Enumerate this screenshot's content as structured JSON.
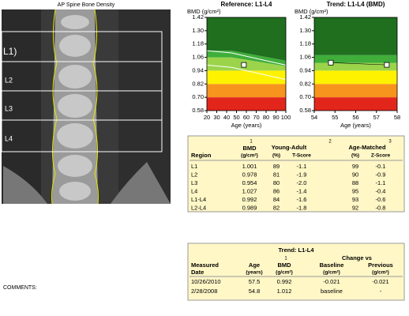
{
  "image": {
    "title": "AP Spine Bone Density",
    "labels": [
      "L1)",
      "L2",
      "L3",
      "L4"
    ]
  },
  "chart_data": [
    {
      "type": "scatter",
      "title": "Reference: L1-L4",
      "y_label": "BMD (g/cm²)",
      "x_label": "Age (years)",
      "xlim": [
        20,
        100
      ],
      "xticks": [
        20,
        30,
        40,
        50,
        60,
        70,
        80,
        90,
        100
      ],
      "ylim": [
        0.58,
        1.42
      ],
      "yticks": [
        0.58,
        {
          "value": 0.7,
          "label": "0.70"
        },
        0.82,
        0.94,
        1.06,
        1.18,
        {
          "value": 1.3,
          "label": "1.30"
        },
        1.42
      ],
      "band_x": [
        20,
        45,
        100
      ],
      "bands": [
        {
          "color": "#e3261c",
          "lower": [
            0.58,
            0.58,
            0.58
          ],
          "upper": [
            0.7,
            0.7,
            0.7
          ]
        },
        {
          "color": "#f7941d",
          "lower": [
            0.7,
            0.7,
            0.7
          ],
          "upper": [
            0.82,
            0.82,
            0.82
          ]
        },
        {
          "color": "#fff200",
          "lower": [
            0.82,
            0.82,
            0.82
          ],
          "upper": [
            0.94,
            0.94,
            0.94
          ]
        },
        {
          "color": "#9bd44a",
          "lower": [
            0.94,
            0.94,
            0.94
          ],
          "upper": [
            1.06,
            1.06,
            0.98
          ]
        },
        {
          "color": "#3fae3a",
          "lower": [
            1.06,
            1.06,
            0.98
          ],
          "upper": [
            1.12,
            1.12,
            1.03
          ]
        },
        {
          "color": "#1f6f1f",
          "lower": [
            1.12,
            1.12,
            1.03
          ],
          "upper": [
            1.42,
            1.42,
            1.42
          ]
        }
      ],
      "curves": [
        {
          "x": [
            20,
            45,
            100
          ],
          "y": [
            1.12,
            1.1,
            0.99
          ]
        },
        {
          "x": [
            20,
            45,
            100
          ],
          "y": [
            0.99,
            0.97,
            0.86
          ]
        }
      ],
      "series": [
        {
          "color": "#ffffff",
          "x": [
            57.5
          ],
          "values": [
            0.992
          ]
        }
      ]
    },
    {
      "type": "line",
      "title": "Trend: L1-L4 (BMD)",
      "y_label": "BMD (g/cm²)",
      "x_label": "Age (years)",
      "xlim": [
        54,
        58
      ],
      "xticks": [
        54,
        55,
        56,
        57,
        58
      ],
      "ylim": [
        0.58,
        1.42
      ],
      "yticks": [
        0.58,
        {
          "value": 0.7,
          "label": "0.70"
        },
        0.82,
        0.94,
        1.06,
        1.18,
        {
          "value": 1.3,
          "label": "1.30"
        },
        1.42
      ],
      "band_x": [
        54,
        58
      ],
      "bands": [
        {
          "color": "#e3261c",
          "lower": [
            0.58,
            0.58
          ],
          "upper": [
            0.7,
            0.7
          ]
        },
        {
          "color": "#f7941d",
          "lower": [
            0.7,
            0.7
          ],
          "upper": [
            0.82,
            0.82
          ]
        },
        {
          "color": "#fff200",
          "lower": [
            0.82,
            0.82
          ],
          "upper": [
            0.94,
            0.94
          ]
        },
        {
          "color": "#9bd44a",
          "lower": [
            0.94,
            0.94
          ],
          "upper": [
            1.01,
            1.01
          ]
        },
        {
          "color": "#3fae3a",
          "lower": [
            1.01,
            1.01
          ],
          "upper": [
            1.08,
            1.08
          ]
        },
        {
          "color": "#1f6f1f",
          "lower": [
            1.08,
            1.08
          ],
          "upper": [
            1.42,
            1.42
          ]
        }
      ],
      "curves": [],
      "series": [
        {
          "color": "#ffffff",
          "x": [
            54.8,
            57.5
          ],
          "values": [
            1.012,
            0.992
          ]
        }
      ]
    }
  ],
  "region_table": {
    "header": {
      "region": "Region",
      "bmd": "BMD",
      "bmd_note": "1",
      "bmd_unit": "(g/cm²)",
      "ya": "Young-Adult",
      "ya_note": "2",
      "ya_pct": "(%)",
      "ya_t": "T-Score",
      "am": "Age-Matched",
      "am_note": "3",
      "am_pct": "(%)",
      "am_z": "Z-Score"
    },
    "rows": [
      [
        "L1",
        "1.001",
        "89",
        "-1.1",
        "99",
        "-0.1"
      ],
      [
        "L2",
        "0.978",
        "81",
        "-1.9",
        "90",
        "-0.9"
      ],
      [
        "L3",
        "0.954",
        "80",
        "-2.0",
        "88",
        "-1.1"
      ],
      [
        "L4",
        "1.027",
        "86",
        "-1.4",
        "95",
        "-0.4"
      ],
      [
        "L1-L4",
        "0.992",
        "84",
        "-1.6",
        "93",
        "-0.6"
      ],
      [
        "L2-L4",
        "0.989",
        "82",
        "-1.8",
        "92",
        "-0.8"
      ]
    ]
  },
  "trend_table": {
    "header": {
      "title": "Trend: L1-L4",
      "date": "Measured",
      "date2": "Date",
      "age": "Age",
      "age_unit": "(years)",
      "bmd": "BMD",
      "bmd_note": "1",
      "bmd_unit": "(g/cm²)",
      "change": "Change vs",
      "base": "Baseline",
      "base_unit": "(g/cm²)",
      "prev": "Previous",
      "prev_unit": "(g/cm²)"
    },
    "rows": [
      [
        "10/26/2010",
        "57.5",
        "0.992",
        "-0.021",
        "-0.021"
      ],
      [
        "2/28/2008",
        "54.8",
        "1.012",
        "baseline",
        "-"
      ]
    ]
  },
  "comments": "COMMENTS:"
}
